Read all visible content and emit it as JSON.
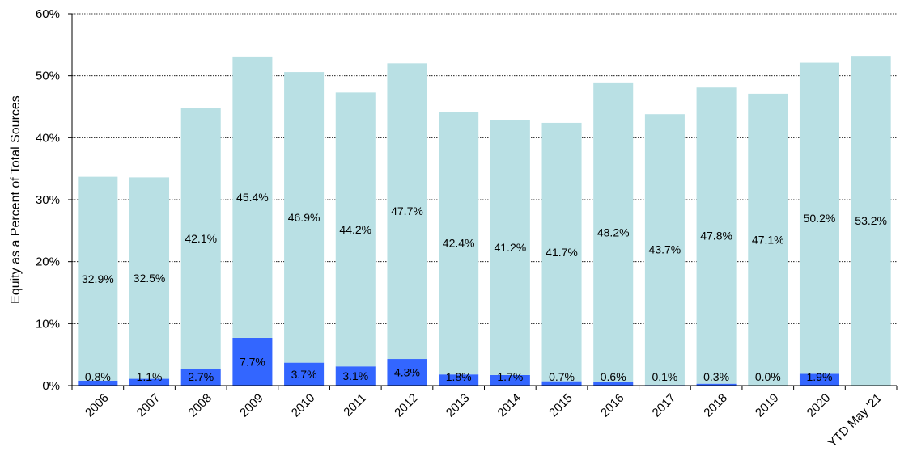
{
  "chart_data": {
    "type": "bar",
    "stacked": true,
    "title": "",
    "xlabel": "",
    "ylabel": "Equity as a Percent of Total Sources",
    "ylim": [
      0,
      60
    ],
    "yticks": [
      "0%",
      "10%",
      "20%",
      "30%",
      "40%",
      "50%",
      "60%"
    ],
    "y_tick_values": [
      0,
      10,
      20,
      30,
      40,
      50,
      60
    ],
    "grid": true,
    "legend": "none",
    "categories": [
      "2006",
      "2007",
      "2008",
      "2009",
      "2010",
      "2011",
      "2012",
      "2013",
      "2014",
      "2015",
      "2016",
      "2017",
      "2018",
      "2019",
      "2020",
      "YTD May '21"
    ],
    "series": [
      {
        "color": "#3366ff",
        "values": [
          0.8,
          1.1,
          2.7,
          7.7,
          3.7,
          3.1,
          4.3,
          1.8,
          1.7,
          0.7,
          0.6,
          0.1,
          0.3,
          0.0,
          1.9,
          null
        ],
        "labels": [
          "0.8%",
          "1.1%",
          "2.7%",
          "7.7%",
          "3.7%",
          "3.1%",
          "4.3%",
          "1.8%",
          "1.7%",
          "0.7%",
          "0.6%",
          "0.1%",
          "0.3%",
          "0.0%",
          "1.9%",
          ""
        ]
      },
      {
        "color": "#b9e0e4",
        "values": [
          32.9,
          32.5,
          42.1,
          45.4,
          46.9,
          44.2,
          47.7,
          42.4,
          41.2,
          41.7,
          48.2,
          43.7,
          47.8,
          47.1,
          50.2,
          53.2
        ],
        "labels": [
          "32.9%",
          "32.5%",
          "42.1%",
          "45.4%",
          "46.9%",
          "44.2%",
          "47.7%",
          "42.4%",
          "41.2%",
          "41.7%",
          "48.2%",
          "43.7%",
          "47.8%",
          "47.1%",
          "50.2%",
          "53.2%"
        ]
      }
    ]
  }
}
